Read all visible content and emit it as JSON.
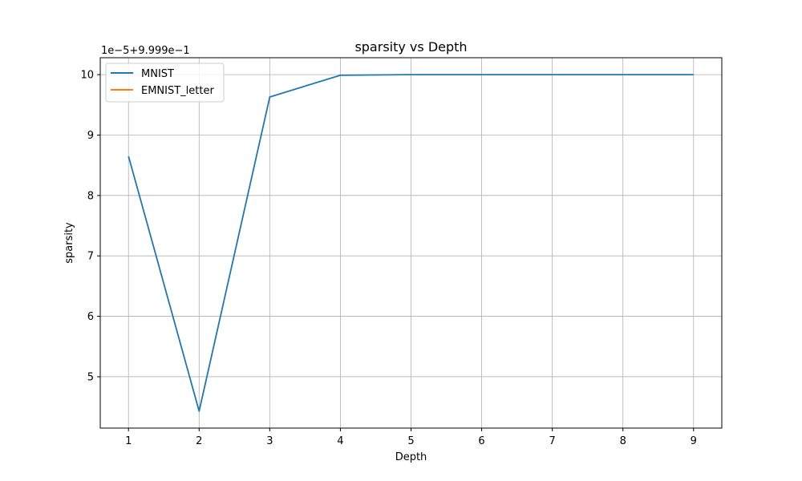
{
  "chart_data": {
    "type": "line",
    "title": "sparsity vs Depth",
    "xlabel": "Depth",
    "ylabel": "sparsity",
    "offset_label": "1e−5+9.999e−1",
    "xlim": [
      0.6,
      9.4
    ],
    "ylim": [
      4.15,
      10.28
    ],
    "xticks": [
      1,
      2,
      3,
      4,
      5,
      6,
      7,
      8,
      9
    ],
    "yticks": [
      5,
      6,
      7,
      8,
      9,
      10
    ],
    "grid": true,
    "legend_position": "top-left",
    "series": [
      {
        "name": "MNIST",
        "color": "#1f77b4",
        "x": [
          1,
          2,
          3,
          4,
          5,
          6,
          7,
          8,
          9
        ],
        "y": [
          8.65,
          4.43,
          9.63,
          9.99,
          10.0,
          10.0,
          10.0,
          10.0,
          10.0
        ]
      },
      {
        "name": "EMNIST_letter",
        "color": "#ff7f0e",
        "x": [],
        "y": []
      }
    ]
  }
}
